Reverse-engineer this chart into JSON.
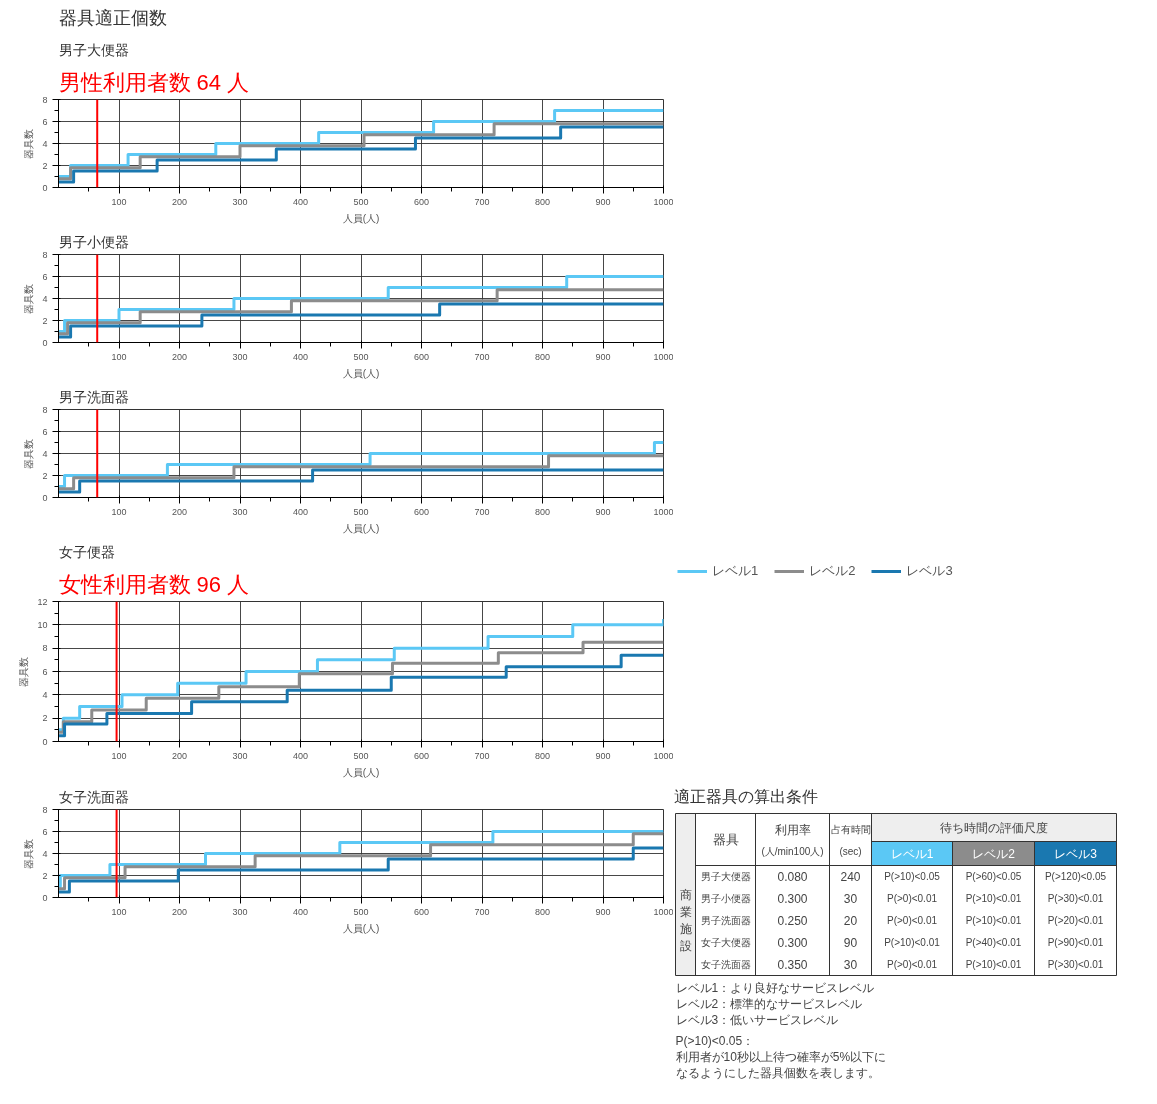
{
  "chart_data": [
    {
      "type": "other",
      "title": "器具適正個数"
    },
    {
      "type": "step",
      "title": "男子大便器",
      "annotations": [
        "男性利用者数 64 人"
      ],
      "xlabel": "人員(人)",
      "ylabel": "器具数",
      "xlim": [
        0,
        1000
      ],
      "ylim": [
        0,
        8
      ],
      "xticks": [
        100,
        200,
        300,
        400,
        500,
        600,
        700,
        800,
        900,
        1000
      ],
      "yticks": [
        0,
        2,
        4,
        6,
        8
      ],
      "grid": true,
      "ref_lines": [
        {
          "axis": "x",
          "value": 64,
          "color": "#ff0000"
        }
      ],
      "series": [
        {
          "color": "#5bc8f5",
          "x": [
            0,
            20,
            115,
            260,
            430,
            620,
            820,
            1000
          ],
          "values": [
            1,
            2,
            3,
            4,
            5,
            6,
            7,
            7
          ]
        },
        {
          "color": "#8c8c8c",
          "x": [
            0,
            20,
            135,
            300,
            505,
            720,
            1000
          ],
          "values": [
            0.8,
            1.8,
            2.8,
            3.8,
            4.8,
            5.8,
            5.8
          ]
        },
        {
          "color": "#1a78b0",
          "x": [
            0,
            25,
            163,
            360,
            590,
            830,
            1000
          ],
          "values": [
            0.5,
            1.5,
            2.5,
            3.5,
            4.5,
            5.5,
            5.5
          ]
        }
      ]
    },
    {
      "type": "step",
      "title": "男子小便器",
      "xlabel": "人員(人)",
      "ylabel": "器具数",
      "xlim": [
        0,
        1000
      ],
      "ylim": [
        0,
        8
      ],
      "xticks": [
        100,
        200,
        300,
        400,
        500,
        600,
        700,
        800,
        900,
        1000
      ],
      "yticks": [
        0,
        2,
        4,
        6,
        8
      ],
      "grid": true,
      "ref_lines": [
        {
          "axis": "x",
          "value": 64,
          "color": "#ff0000"
        }
      ],
      "series": [
        {
          "color": "#5bc8f5",
          "x": [
            0,
            10,
            100,
            290,
            545,
            840,
            1000
          ],
          "values": [
            1,
            2,
            3,
            4,
            5,
            6,
            6
          ]
        },
        {
          "color": "#8c8c8c",
          "x": [
            0,
            15,
            135,
            385,
            725,
            1000
          ],
          "values": [
            0.8,
            1.8,
            2.8,
            3.8,
            4.8,
            4.8
          ]
        },
        {
          "color": "#1a78b0",
          "x": [
            0,
            20,
            237,
            630,
            1000
          ],
          "values": [
            0.5,
            1.5,
            2.5,
            3.5,
            3.5
          ]
        }
      ]
    },
    {
      "type": "step",
      "title": "男子洗面器",
      "xlabel": "人員(人)",
      "ylabel": "器具数",
      "xlim": [
        0,
        1000
      ],
      "ylim": [
        0,
        8
      ],
      "xticks": [
        100,
        200,
        300,
        400,
        500,
        600,
        700,
        800,
        900,
        1000
      ],
      "yticks": [
        0,
        2,
        4,
        6,
        8
      ],
      "grid": true,
      "ref_lines": [
        {
          "axis": "x",
          "value": 64,
          "color": "#ff0000"
        }
      ],
      "series": [
        {
          "color": "#5bc8f5",
          "x": [
            0,
            10,
            180,
            515,
            985,
            1000
          ],
          "values": [
            1,
            2,
            3,
            4,
            5,
            5
          ]
        },
        {
          "color": "#8c8c8c",
          "x": [
            0,
            25,
            290,
            810,
            1000
          ],
          "values": [
            0.8,
            1.8,
            2.8,
            3.8,
            3.8
          ]
        },
        {
          "color": "#1a78b0",
          "x": [
            0,
            35,
            420,
            1000
          ],
          "values": [
            0.5,
            1.5,
            2.5,
            2.5
          ]
        }
      ]
    },
    {
      "type": "step",
      "title": "女子便器",
      "annotations": [
        "女性利用者数 96 人"
      ],
      "xlabel": "人員(人)",
      "ylabel": "器具数",
      "xlim": [
        0,
        1000
      ],
      "ylim": [
        0,
        12
      ],
      "xticks": [
        100,
        200,
        300,
        400,
        500,
        600,
        700,
        800,
        900,
        1000
      ],
      "yticks": [
        0,
        2,
        4,
        6,
        8,
        10,
        12
      ],
      "grid": true,
      "legend": "right",
      "ref_lines": [
        {
          "axis": "x",
          "value": 96,
          "color": "#ff0000"
        }
      ],
      "series": [
        {
          "name": "レベル1",
          "color": "#5bc8f5",
          "x": [
            0,
            8,
            35,
            105,
            197,
            310,
            428,
            555,
            710,
            850,
            1000
          ],
          "values": [
            1,
            2,
            3,
            4,
            5,
            6,
            7,
            8,
            9,
            10,
            10.5
          ]
        },
        {
          "name": "レベル2",
          "color": "#8c8c8c",
          "x": [
            0,
            8,
            55,
            145,
            265,
            398,
            552,
            727,
            867,
            1000
          ],
          "values": [
            0.8,
            1.7,
            2.7,
            3.7,
            4.7,
            5.8,
            6.7,
            7.6,
            8.5,
            8.5
          ]
        },
        {
          "name": "レベル3",
          "color": "#1a78b0",
          "x": [
            0,
            10,
            80,
            220,
            378,
            550,
            740,
            930,
            1000
          ],
          "values": [
            0.5,
            1.5,
            2.4,
            3.4,
            4.4,
            5.5,
            6.4,
            7.4,
            7.4
          ]
        }
      ]
    },
    {
      "type": "step",
      "title": "女子洗面器",
      "xlabel": "人員(人)",
      "ylabel": "器具数",
      "xlim": [
        0,
        1000
      ],
      "ylim": [
        0,
        8
      ],
      "xticks": [
        100,
        200,
        300,
        400,
        500,
        600,
        700,
        800,
        900,
        1000
      ],
      "yticks": [
        0,
        2,
        4,
        6,
        8
      ],
      "grid": true,
      "ref_lines": [
        {
          "axis": "x",
          "value": 96,
          "color": "#ff0000"
        }
      ],
      "series": [
        {
          "color": "#5bc8f5",
          "x": [
            0,
            3,
            85,
            243,
            465,
            718,
            1000
          ],
          "values": [
            1,
            2,
            3,
            4,
            5,
            6,
            6
          ]
        },
        {
          "color": "#8c8c8c",
          "x": [
            0,
            10,
            110,
            325,
            615,
            950,
            1000
          ],
          "values": [
            0.8,
            1.8,
            2.8,
            3.8,
            4.8,
            5.8,
            5.8
          ]
        },
        {
          "color": "#1a78b0",
          "x": [
            0,
            18,
            198,
            545,
            950,
            1000
          ],
          "values": [
            0.5,
            1.5,
            2.5,
            3.5,
            4.5,
            4.5
          ]
        }
      ]
    },
    {
      "type": "other",
      "title": "適正器具の算出条件",
      "annotations": [
        "商業施設",
        "器具",
        "利用率",
        "(人/min100人)",
        "占有時間",
        "(sec)",
        "待ち時間の評価尺度",
        "レベル1",
        "レベル2",
        "レベル3",
        "男子大便器",
        "0.080",
        "240",
        "P(>10)<0.05",
        "P(>60)<0.05",
        "P(>120)<0.05",
        "男子小便器",
        "0.300",
        "30",
        "P(>0)<0.01",
        "P(>10)<0.01",
        "P(>30)<0.01",
        "男子洗面器",
        "0.250",
        "20",
        "P(>0)<0.01",
        "P(>10)<0.01",
        "P(>20)<0.01",
        "女子大便器",
        "0.300",
        "90",
        "P(>10)<0.01",
        "P(>40)<0.01",
        "P(>90)<0.01",
        "女子洗面器",
        "0.350",
        "30",
        "P(>0)<0.01",
        "P(>10)<0.01",
        "P(>30)<0.01",
        "レベル1：より良好なサービスレベル",
        "レベル2：標準的なサービスレベル",
        "レベル3：低いサービスレベル",
        "P(>10)<0.05：",
        "利用者が10秒以上待つ確率が5%以下に",
        "なるようにした器具個数を表します。"
      ]
    }
  ]
}
